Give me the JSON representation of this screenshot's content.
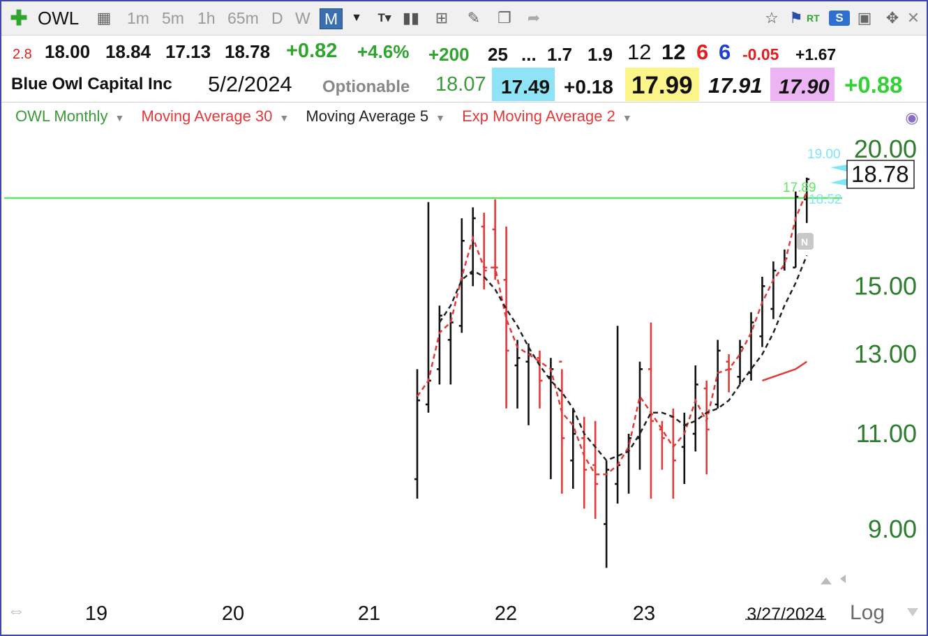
{
  "toolbar": {
    "symbol": "OWL",
    "timeframes": [
      "1m",
      "5m",
      "1h",
      "65m",
      "D",
      "W",
      "M"
    ],
    "selected_timeframe": "M",
    "rt_label": "RT",
    "s_label": "S",
    "icons": [
      "add-plus-icon",
      "link-icon",
      "text-tool-icon",
      "bars-icon",
      "grid-add-icon",
      "pencil-icon",
      "copy-icon",
      "share-arrow-icon",
      "star-icon",
      "flag-icon",
      "save-icon",
      "move-icon",
      "close-icon"
    ]
  },
  "quote_row1": [
    "2.8",
    "18.00",
    "18.84",
    "17.13",
    "18.78",
    "+0.82",
    "+4.6%",
    "+200",
    "25",
    "...",
    "1.7",
    "1.9",
    "12",
    "12",
    "6",
    "6",
    "-0.05",
    "+1.67"
  ],
  "quote_row2": {
    "company": "Blue Owl Capital Inc",
    "date": "5/2/2024",
    "optionable": "Optionable",
    "prev": "18.07",
    "bid": "17.49",
    "spread": "+0.18",
    "ask": "17.99",
    "mid": "17.91",
    "prior": "17.90",
    "gain": "+0.88"
  },
  "colors": {
    "bid_bg": "#8ee4f6",
    "ask_bg": "#fbf58a",
    "prior_bg": "#ecb4f2",
    "up_bar": "#111111",
    "down_bar": "#e03a3a",
    "level_line": "#5fe85f",
    "axis_green": "#2e7d2e"
  },
  "legend": [
    {
      "label": "OWL Monthly",
      "color": "#3a9a3a"
    },
    {
      "label": "Moving Average 30",
      "color": "#e03a3a"
    },
    {
      "label": "Moving Average 5",
      "color": "#222222"
    },
    {
      "label": "Exp Moving Average 2",
      "color": "#e03a3a"
    }
  ],
  "labels": {
    "cyan_top": "19.00",
    "green_level": "17.89",
    "cyan_bottom": "18.52",
    "last_price": "18.78",
    "news": "N",
    "log": "Log"
  },
  "chart_data": {
    "type": "bar",
    "scale": "log",
    "ylim": [
      8.2,
      20.4
    ],
    "yticks": [
      20.0,
      15.0,
      13.0,
      11.0,
      9.0
    ],
    "ytick_labels": [
      "20.00",
      "15.00",
      "13.00",
      "11.00",
      "9.00"
    ],
    "xticks": [
      "19",
      "20",
      "21",
      "22",
      "23",
      "3/27/2024"
    ],
    "horizontal_level": 17.89,
    "bars": [
      {
        "high": 12.6,
        "low": 9.6,
        "open": 10.0,
        "close": 11.8
      },
      {
        "high": 17.9,
        "low": 11.5,
        "open": 11.7,
        "close": 12.3
      },
      {
        "high": 14.4,
        "low": 12.2,
        "open": 12.6,
        "close": 14.1
      },
      {
        "high": 14.2,
        "low": 12.2,
        "open": 13.4,
        "close": 13.9
      },
      {
        "high": 17.3,
        "low": 13.6,
        "open": 13.8,
        "close": 16.5
      },
      {
        "high": 17.7,
        "low": 15.0,
        "open": 15.4,
        "close": 17.3
      },
      {
        "high": 17.5,
        "low": 14.9,
        "open": 17.0,
        "close": 15.5
      },
      {
        "high": 18.0,
        "low": 15.2,
        "open": 16.9,
        "close": 15.6
      },
      {
        "high": 17.0,
        "low": 11.6,
        "open": 15.2,
        "close": 13.1
      },
      {
        "high": 13.4,
        "low": 11.6,
        "open": 12.7,
        "close": 12.9
      },
      {
        "high": 13.3,
        "low": 11.2,
        "open": 12.8,
        "close": 13.0
      },
      {
        "high": 13.1,
        "low": 11.6,
        "open": 12.9,
        "close": 12.3
      },
      {
        "high": 12.9,
        "low": 10.0,
        "open": 12.4,
        "close": 12.6
      },
      {
        "high": 12.6,
        "low": 9.7,
        "open": 12.8,
        "close": 10.9
      },
      {
        "high": 11.6,
        "low": 9.8,
        "open": 10.4,
        "close": 11.0
      },
      {
        "high": 11.4,
        "low": 9.4,
        "open": 10.9,
        "close": 10.2
      },
      {
        "high": 11.3,
        "low": 9.2,
        "open": 10.3,
        "close": 9.9
      },
      {
        "high": 10.4,
        "low": 8.3,
        "open": 9.1,
        "close": 10.2
      },
      {
        "high": 13.8,
        "low": 9.5,
        "open": 9.9,
        "close": 10.3
      },
      {
        "high": 11.0,
        "low": 9.7,
        "open": 10.6,
        "close": 10.9
      },
      {
        "high": 12.8,
        "low": 10.2,
        "open": 10.9,
        "close": 12.6
      },
      {
        "high": 13.9,
        "low": 9.6,
        "open": 12.6,
        "close": 11.3
      },
      {
        "high": 11.3,
        "low": 10.2,
        "open": 11.1,
        "close": 10.9
      },
      {
        "high": 11.6,
        "low": 9.6,
        "open": 11.4,
        "close": 10.4
      },
      {
        "high": 11.5,
        "low": 9.9,
        "open": 10.7,
        "close": 11.2
      },
      {
        "high": 12.7,
        "low": 10.6,
        "open": 11.0,
        "close": 12.2
      },
      {
        "high": 12.3,
        "low": 10.1,
        "open": 12.1,
        "close": 11.1
      },
      {
        "high": 13.4,
        "low": 11.6,
        "open": 11.7,
        "close": 13.1
      },
      {
        "high": 13.0,
        "low": 12.0,
        "open": 12.8,
        "close": 12.6
      },
      {
        "high": 13.4,
        "low": 12.2,
        "open": 12.4,
        "close": 13.2
      },
      {
        "high": 14.2,
        "low": 12.3,
        "open": 12.5,
        "close": 13.9
      },
      {
        "high": 15.3,
        "low": 13.2,
        "open": 13.5,
        "close": 15.0
      },
      {
        "high": 15.8,
        "low": 14.0,
        "open": 14.3,
        "close": 15.5
      },
      {
        "high": 16.2,
        "low": 15.5,
        "open": 15.6,
        "close": 15.9
      },
      {
        "high": 18.3,
        "low": 15.6,
        "open": 15.6,
        "close": 18.1
      },
      {
        "high": 18.84,
        "low": 17.13,
        "open": 18.0,
        "close": 18.78
      }
    ],
    "ma30": [
      12.3,
      12.4,
      12.5,
      12.6,
      12.8
    ],
    "ema2": [
      11.9,
      12.3,
      13.6,
      13.9,
      15.3,
      16.6,
      15.6,
      15.6,
      14.0,
      13.2,
      13.0,
      12.8,
      12.6,
      11.5,
      11.2,
      10.5,
      10.1,
      10.1,
      10.3,
      10.7,
      11.9,
      11.5,
      11.1,
      10.7,
      11.0,
      11.8,
      11.3,
      12.5,
      12.6,
      13.0,
      13.6,
      14.5,
      15.2,
      15.7,
      17.3,
      18.3
    ],
    "ma5": [
      13.9,
      14.4,
      15.2,
      15.5,
      15.3,
      14.9,
      14.3,
      13.8,
      13.2,
      12.7,
      12.3,
      12.0,
      11.6,
      11.0,
      10.7,
      10.4,
      10.5,
      10.6,
      11.0,
      11.5,
      11.5,
      11.4,
      11.2,
      11.3,
      11.5,
      11.6,
      11.8,
      12.2,
      12.6,
      13.0,
      13.6,
      14.4,
      15.1,
      16.0
    ]
  }
}
